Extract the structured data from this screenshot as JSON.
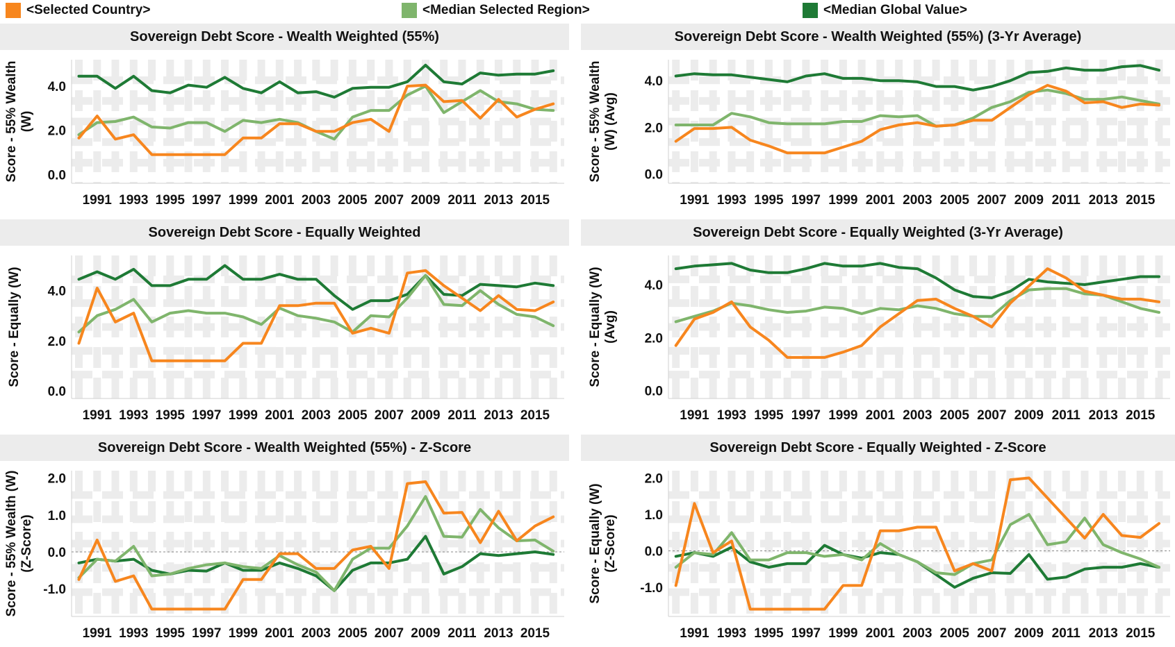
{
  "legend": [
    {
      "label": "<Selected Country>",
      "color": "#f7861e"
    },
    {
      "label": "<Median Selected Region>",
      "color": "#7fb56c"
    },
    {
      "label": "<Median Global Value>",
      "color": "#1e7a35"
    }
  ],
  "chart_data": [
    {
      "type": "line",
      "title": "Sovereign Debt Score - Wealth Weighted (55%)",
      "ylabel": [
        "Score - 55% Wealth",
        "(W)"
      ],
      "ylim": [
        -0.4,
        5.2
      ],
      "yticks": [
        0,
        2,
        4
      ],
      "ytick_labels": [
        "0.0",
        "2.0",
        "4.0"
      ],
      "xticks": [
        1991,
        1993,
        1995,
        1997,
        1999,
        2001,
        2003,
        2005,
        2007,
        2009,
        2011,
        2013,
        2015
      ],
      "x": [
        1990,
        1991,
        1992,
        1993,
        1994,
        1995,
        1996,
        1997,
        1998,
        1999,
        2000,
        2001,
        2002,
        2003,
        2004,
        2005,
        2006,
        2007,
        2008,
        2009,
        2010,
        2011,
        2012,
        2013,
        2014,
        2015,
        2016
      ],
      "series": [
        {
          "name": "<Selected Country>",
          "values": [
            1.65,
            2.65,
            1.6,
            1.8,
            0.9,
            0.9,
            0.9,
            0.9,
            0.9,
            1.65,
            1.65,
            2.3,
            2.3,
            1.95,
            1.95,
            2.35,
            2.5,
            1.95,
            4.0,
            4.05,
            3.3,
            3.35,
            2.55,
            3.4,
            2.6,
            2.95,
            3.2
          ]
        },
        {
          "name": "<Median Selected Region>",
          "values": [
            1.8,
            2.35,
            2.4,
            2.6,
            2.15,
            2.1,
            2.35,
            2.35,
            1.95,
            2.45,
            2.35,
            2.5,
            2.35,
            1.95,
            1.6,
            2.6,
            2.9,
            2.9,
            3.6,
            4.0,
            2.8,
            3.3,
            3.8,
            3.3,
            3.2,
            2.95,
            2.9
          ]
        },
        {
          "name": "<Median Global Value>",
          "values": [
            4.45,
            4.45,
            3.9,
            4.45,
            3.8,
            3.7,
            4.05,
            3.95,
            4.4,
            3.9,
            3.7,
            4.2,
            3.7,
            3.75,
            3.5,
            3.9,
            3.95,
            3.95,
            4.2,
            4.95,
            4.2,
            4.1,
            4.6,
            4.5,
            4.55,
            4.55,
            4.7
          ]
        }
      ]
    },
    {
      "type": "line",
      "title": "Sovereign Debt Score - Wealth Weighted (55%) (3-Yr Average)",
      "ylabel": [
        "Score - 55% Wealth",
        "(W) (Avg)"
      ],
      "ylim": [
        -0.4,
        4.9
      ],
      "yticks": [
        0,
        2,
        4
      ],
      "ytick_labels": [
        "0.0",
        "2.0",
        "4.0"
      ],
      "xticks": [
        1991,
        1993,
        1995,
        1997,
        1999,
        2001,
        2003,
        2005,
        2007,
        2009,
        2011,
        2013,
        2015
      ],
      "x": [
        1990,
        1991,
        1992,
        1993,
        1994,
        1995,
        1996,
        1997,
        1998,
        1999,
        2000,
        2001,
        2002,
        2003,
        2004,
        2005,
        2006,
        2007,
        2008,
        2009,
        2010,
        2011,
        2012,
        2013,
        2014,
        2015,
        2016
      ],
      "series": [
        {
          "name": "<Selected Country>",
          "values": [
            1.4,
            1.95,
            1.95,
            2.0,
            1.45,
            1.2,
            0.9,
            0.9,
            0.9,
            1.15,
            1.4,
            1.9,
            2.1,
            2.2,
            2.05,
            2.1,
            2.3,
            2.3,
            2.85,
            3.4,
            3.8,
            3.55,
            3.05,
            3.1,
            2.85,
            3.0,
            2.95
          ]
        },
        {
          "name": "<Median Selected Region>",
          "values": [
            2.1,
            2.1,
            2.1,
            2.6,
            2.45,
            2.2,
            2.15,
            2.15,
            2.15,
            2.25,
            2.25,
            2.5,
            2.45,
            2.5,
            2.05,
            2.1,
            2.4,
            2.85,
            3.1,
            3.5,
            3.6,
            3.45,
            3.2,
            3.2,
            3.3,
            3.15,
            3.0
          ]
        },
        {
          "name": "<Median Global Value>",
          "values": [
            4.2,
            4.3,
            4.25,
            4.25,
            4.15,
            4.05,
            3.95,
            4.2,
            4.3,
            4.1,
            4.1,
            4.0,
            4.0,
            3.95,
            3.75,
            3.75,
            3.6,
            3.75,
            4.0,
            4.35,
            4.4,
            4.55,
            4.45,
            4.45,
            4.6,
            4.65,
            4.45
          ]
        }
      ]
    },
    {
      "type": "line",
      "title": "Sovereign Debt Score - Equally Weighted",
      "ylabel": [
        "Score - Equally (W)"
      ],
      "ylim": [
        -0.3,
        5.4
      ],
      "yticks": [
        0,
        2,
        4
      ],
      "ytick_labels": [
        "0.0",
        "2.0",
        "4.0"
      ],
      "xticks": [
        1991,
        1993,
        1995,
        1997,
        1999,
        2001,
        2003,
        2005,
        2007,
        2009,
        2011,
        2013,
        2015
      ],
      "x": [
        1990,
        1991,
        1992,
        1993,
        1994,
        1995,
        1996,
        1997,
        1998,
        1999,
        2000,
        2001,
        2002,
        2003,
        2004,
        2005,
        2006,
        2007,
        2008,
        2009,
        2010,
        2011,
        2012,
        2013,
        2014,
        2015,
        2016
      ],
      "series": [
        {
          "name": "<Selected Country>",
          "values": [
            1.9,
            4.1,
            2.75,
            3.1,
            1.2,
            1.2,
            1.2,
            1.2,
            1.2,
            1.9,
            1.9,
            3.4,
            3.4,
            3.5,
            3.5,
            2.3,
            2.5,
            2.3,
            4.7,
            4.8,
            4.2,
            3.7,
            3.2,
            3.8,
            3.25,
            3.2,
            3.55
          ]
        },
        {
          "name": "<Median Selected Region>",
          "values": [
            2.35,
            3.0,
            3.25,
            3.65,
            2.75,
            3.1,
            3.2,
            3.1,
            3.1,
            2.95,
            2.65,
            3.3,
            3.0,
            2.9,
            2.75,
            2.35,
            3.0,
            2.95,
            3.7,
            4.6,
            3.45,
            3.4,
            4.0,
            3.45,
            3.05,
            2.95,
            2.6
          ]
        },
        {
          "name": "<Median Global Value>",
          "values": [
            4.45,
            4.75,
            4.45,
            4.85,
            4.2,
            4.2,
            4.45,
            4.45,
            5.0,
            4.45,
            4.45,
            4.65,
            4.45,
            4.45,
            3.8,
            3.25,
            3.6,
            3.6,
            3.85,
            4.6,
            3.85,
            3.8,
            4.25,
            4.2,
            4.15,
            4.3,
            4.2
          ]
        }
      ]
    },
    {
      "type": "line",
      "title": "Sovereign Debt Score - Equally Weighted (3-Yr Average)",
      "ylabel": [
        "Score - Equally (W)",
        "(Avg)"
      ],
      "ylim": [
        -0.3,
        5.1
      ],
      "yticks": [
        0,
        2,
        4
      ],
      "ytick_labels": [
        "0.0",
        "2.0",
        "4.0"
      ],
      "xticks": [
        1991,
        1993,
        1995,
        1997,
        1999,
        2001,
        2003,
        2005,
        2007,
        2009,
        2011,
        2013,
        2015
      ],
      "x": [
        1990,
        1991,
        1992,
        1993,
        1994,
        1995,
        1996,
        1997,
        1998,
        1999,
        2000,
        2001,
        2002,
        2003,
        2004,
        2005,
        2006,
        2007,
        2008,
        2009,
        2010,
        2011,
        2012,
        2013,
        2014,
        2015,
        2016
      ],
      "series": [
        {
          "name": "<Selected Country>",
          "values": [
            1.7,
            2.7,
            2.95,
            3.35,
            2.4,
            1.9,
            1.25,
            1.25,
            1.25,
            1.45,
            1.7,
            2.4,
            2.9,
            3.4,
            3.45,
            3.1,
            2.8,
            2.4,
            3.3,
            3.95,
            4.6,
            4.25,
            3.75,
            3.6,
            3.45,
            3.45,
            3.35
          ]
        },
        {
          "name": "<Median Selected Region>",
          "values": [
            2.6,
            2.8,
            3.0,
            3.3,
            3.2,
            3.05,
            2.95,
            3.0,
            3.15,
            3.1,
            2.9,
            3.1,
            3.05,
            3.2,
            3.1,
            2.9,
            2.8,
            2.8,
            3.4,
            3.8,
            3.85,
            3.85,
            3.65,
            3.6,
            3.35,
            3.1,
            2.95
          ]
        },
        {
          "name": "<Median Global Value>",
          "values": [
            4.6,
            4.7,
            4.75,
            4.8,
            4.55,
            4.45,
            4.45,
            4.6,
            4.8,
            4.7,
            4.7,
            4.8,
            4.65,
            4.6,
            4.25,
            3.8,
            3.55,
            3.5,
            3.75,
            4.2,
            4.1,
            4.05,
            4.0,
            4.1,
            4.2,
            4.3,
            4.3
          ]
        }
      ]
    },
    {
      "type": "line",
      "title": "Sovereign Debt Score - Wealth Weighted (55%) - Z-Score",
      "ylabel": [
        "Score - 55% Wealth (W)",
        "(Z-Score)"
      ],
      "ylim": [
        -1.75,
        2.2
      ],
      "yticks": [
        -1,
        0,
        1,
        2
      ],
      "ytick_labels": [
        "-1.0",
        "0.0",
        "1.0",
        "2.0"
      ],
      "zero_line": true,
      "xticks": [
        1991,
        1993,
        1995,
        1997,
        1999,
        2001,
        2003,
        2005,
        2007,
        2009,
        2011,
        2013,
        2015
      ],
      "x": [
        1990,
        1991,
        1992,
        1993,
        1994,
        1995,
        1996,
        1997,
        1998,
        1999,
        2000,
        2001,
        2002,
        2003,
        2004,
        2005,
        2006,
        2007,
        2008,
        2009,
        2010,
        2011,
        2012,
        2013,
        2014,
        2015,
        2016
      ],
      "series": [
        {
          "name": "<Selected Country>",
          "values": [
            -0.75,
            0.32,
            -0.8,
            -0.65,
            -1.55,
            -1.55,
            -1.55,
            -1.55,
            -1.55,
            -0.75,
            -0.75,
            -0.05,
            -0.05,
            -0.45,
            -0.45,
            0.05,
            0.15,
            -0.45,
            1.85,
            1.9,
            1.05,
            1.07,
            0.25,
            1.1,
            0.3,
            0.7,
            0.95
          ]
        },
        {
          "name": "<Median Selected Region>",
          "values": [
            -0.7,
            -0.2,
            -0.25,
            0.15,
            -0.65,
            -0.6,
            -0.45,
            -0.35,
            -0.3,
            -0.4,
            -0.45,
            -0.1,
            -0.35,
            -0.55,
            -1.05,
            -0.2,
            0.1,
            0.1,
            0.7,
            1.5,
            0.42,
            0.4,
            1.15,
            0.65,
            0.3,
            0.32,
            0.02
          ]
        },
        {
          "name": "<Median Global Value>",
          "values": [
            -0.3,
            -0.2,
            -0.25,
            -0.2,
            -0.5,
            -0.6,
            -0.5,
            -0.52,
            -0.3,
            -0.5,
            -0.5,
            -0.3,
            -0.45,
            -0.65,
            -1.05,
            -0.5,
            -0.3,
            -0.3,
            -0.2,
            0.42,
            -0.6,
            -0.4,
            -0.05,
            -0.1,
            -0.05,
            0.0,
            -0.07
          ]
        }
      ]
    },
    {
      "type": "line",
      "title": "Sovereign Debt Score - Equally Weighted - Z-Score",
      "ylabel": [
        "Score - Equally (W)",
        "(Z-Score)"
      ],
      "ylim": [
        -1.8,
        2.2
      ],
      "yticks": [
        -1,
        0,
        1,
        2
      ],
      "ytick_labels": [
        "-1.0",
        "0.0",
        "1.0",
        "2.0"
      ],
      "zero_line": true,
      "xticks": [
        1991,
        1993,
        1995,
        1997,
        1999,
        2001,
        2003,
        2005,
        2007,
        2009,
        2011,
        2013,
        2015
      ],
      "x": [
        1990,
        1991,
        1992,
        1993,
        1994,
        1995,
        1996,
        1997,
        1998,
        1999,
        2000,
        2001,
        2002,
        2003,
        2004,
        2005,
        2006,
        2007,
        2008,
        2009,
        2010,
        2011,
        2012,
        2013,
        2014,
        2015,
        2016
      ],
      "series": [
        {
          "name": "<Selected Country>",
          "values": [
            -0.95,
            1.3,
            -0.05,
            0.27,
            -1.6,
            -1.6,
            -1.6,
            -1.6,
            -1.6,
            -0.95,
            -0.95,
            0.55,
            0.55,
            0.65,
            0.65,
            -0.55,
            -0.35,
            -0.55,
            1.95,
            2.0,
            1.45,
            0.9,
            0.35,
            1.0,
            0.42,
            0.37,
            0.75
          ]
        },
        {
          "name": "<Median Selected Region>",
          "values": [
            -0.45,
            -0.05,
            -0.1,
            0.5,
            -0.25,
            -0.25,
            -0.05,
            -0.05,
            -0.15,
            -0.1,
            -0.25,
            0.2,
            -0.1,
            -0.3,
            -0.6,
            -0.65,
            -0.35,
            -0.25,
            0.72,
            1.0,
            0.17,
            0.25,
            0.9,
            0.17,
            -0.05,
            -0.22,
            -0.45
          ]
        },
        {
          "name": "<Median Global Value>",
          "values": [
            -0.15,
            -0.05,
            -0.15,
            0.1,
            -0.3,
            -0.45,
            -0.35,
            -0.35,
            0.15,
            -0.1,
            -0.2,
            -0.05,
            -0.1,
            -0.3,
            -0.65,
            -1.0,
            -0.75,
            -0.6,
            -0.62,
            -0.1,
            -0.78,
            -0.72,
            -0.5,
            -0.45,
            -0.45,
            -0.35,
            -0.45
          ]
        }
      ]
    }
  ]
}
